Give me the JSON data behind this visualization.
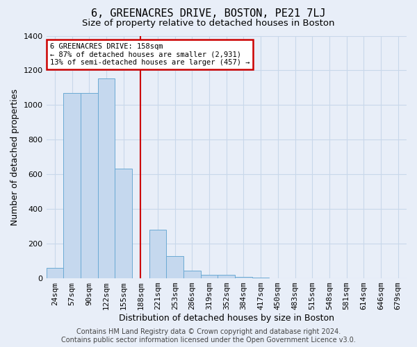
{
  "title": "6, GREENACRES DRIVE, BOSTON, PE21 7LJ",
  "subtitle": "Size of property relative to detached houses in Boston",
  "xlabel": "Distribution of detached houses by size in Boston",
  "ylabel": "Number of detached properties",
  "categories": [
    "24sqm",
    "57sqm",
    "90sqm",
    "122sqm",
    "155sqm",
    "188sqm",
    "221sqm",
    "253sqm",
    "286sqm",
    "319sqm",
    "352sqm",
    "384sqm",
    "417sqm",
    "450sqm",
    "483sqm",
    "515sqm",
    "548sqm",
    "581sqm",
    "614sqm",
    "646sqm",
    "679sqm"
  ],
  "values": [
    62,
    1070,
    1070,
    1155,
    635,
    0,
    280,
    130,
    45,
    20,
    20,
    10,
    5,
    0,
    0,
    0,
    0,
    0,
    0,
    0,
    0
  ],
  "bar_color": "#c5d8ee",
  "bar_edgecolor": "#6baad4",
  "grid_color": "#c8d8ea",
  "background_color": "#e8eef8",
  "property_line_x": 5.0,
  "annotation_line1": "6 GREENACRES DRIVE: 158sqm",
  "annotation_line2": "← 87% of detached houses are smaller (2,931)",
  "annotation_line3": "13% of semi-detached houses are larger (457) →",
  "annotation_box_color": "#ffffff",
  "annotation_box_edgecolor": "#cc0000",
  "property_vline_color": "#cc0000",
  "footer_line1": "Contains HM Land Registry data © Crown copyright and database right 2024.",
  "footer_line2": "Contains public sector information licensed under the Open Government Licence v3.0.",
  "ylim": [
    0,
    1400
  ],
  "title_fontsize": 11,
  "subtitle_fontsize": 9.5,
  "tick_fontsize": 8,
  "ylabel_fontsize": 9,
  "xlabel_fontsize": 9,
  "annotation_fontsize": 7.5,
  "footer_fontsize": 7
}
